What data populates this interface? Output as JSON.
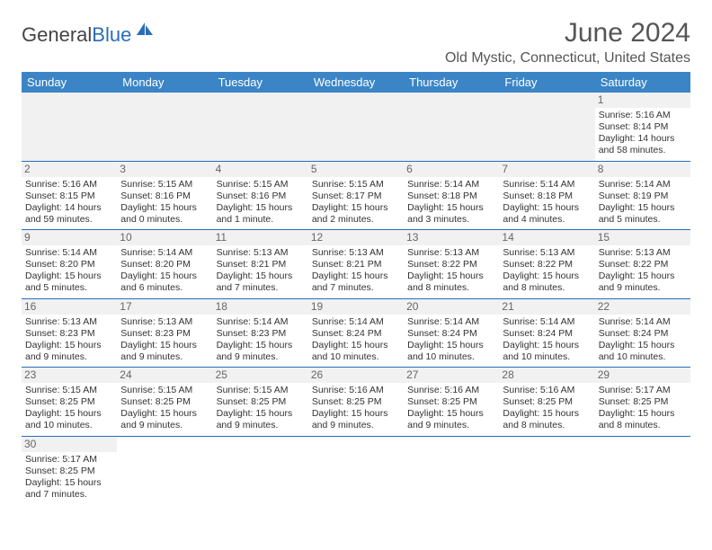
{
  "brand": {
    "part1": "General",
    "part2": "Blue"
  },
  "title": "June 2024",
  "location": "Old Mystic, Connecticut, United States",
  "colors": {
    "header_bg": "#3b85c6",
    "header_text": "#ffffff",
    "rule": "#2a6db8",
    "daybar_bg": "#f1f1f1",
    "text": "#333333",
    "title_text": "#555555"
  },
  "weekdays": [
    "Sunday",
    "Monday",
    "Tuesday",
    "Wednesday",
    "Thursday",
    "Friday",
    "Saturday"
  ],
  "weeks": [
    [
      null,
      null,
      null,
      null,
      null,
      null,
      {
        "n": "1",
        "sunrise": "Sunrise: 5:16 AM",
        "sunset": "Sunset: 8:14 PM",
        "daylight": "Daylight: 14 hours and 58 minutes."
      }
    ],
    [
      {
        "n": "2",
        "sunrise": "Sunrise: 5:16 AM",
        "sunset": "Sunset: 8:15 PM",
        "daylight": "Daylight: 14 hours and 59 minutes."
      },
      {
        "n": "3",
        "sunrise": "Sunrise: 5:15 AM",
        "sunset": "Sunset: 8:16 PM",
        "daylight": "Daylight: 15 hours and 0 minutes."
      },
      {
        "n": "4",
        "sunrise": "Sunrise: 5:15 AM",
        "sunset": "Sunset: 8:16 PM",
        "daylight": "Daylight: 15 hours and 1 minute."
      },
      {
        "n": "5",
        "sunrise": "Sunrise: 5:15 AM",
        "sunset": "Sunset: 8:17 PM",
        "daylight": "Daylight: 15 hours and 2 minutes."
      },
      {
        "n": "6",
        "sunrise": "Sunrise: 5:14 AM",
        "sunset": "Sunset: 8:18 PM",
        "daylight": "Daylight: 15 hours and 3 minutes."
      },
      {
        "n": "7",
        "sunrise": "Sunrise: 5:14 AM",
        "sunset": "Sunset: 8:18 PM",
        "daylight": "Daylight: 15 hours and 4 minutes."
      },
      {
        "n": "8",
        "sunrise": "Sunrise: 5:14 AM",
        "sunset": "Sunset: 8:19 PM",
        "daylight": "Daylight: 15 hours and 5 minutes."
      }
    ],
    [
      {
        "n": "9",
        "sunrise": "Sunrise: 5:14 AM",
        "sunset": "Sunset: 8:20 PM",
        "daylight": "Daylight: 15 hours and 5 minutes."
      },
      {
        "n": "10",
        "sunrise": "Sunrise: 5:14 AM",
        "sunset": "Sunset: 8:20 PM",
        "daylight": "Daylight: 15 hours and 6 minutes."
      },
      {
        "n": "11",
        "sunrise": "Sunrise: 5:13 AM",
        "sunset": "Sunset: 8:21 PM",
        "daylight": "Daylight: 15 hours and 7 minutes."
      },
      {
        "n": "12",
        "sunrise": "Sunrise: 5:13 AM",
        "sunset": "Sunset: 8:21 PM",
        "daylight": "Daylight: 15 hours and 7 minutes."
      },
      {
        "n": "13",
        "sunrise": "Sunrise: 5:13 AM",
        "sunset": "Sunset: 8:22 PM",
        "daylight": "Daylight: 15 hours and 8 minutes."
      },
      {
        "n": "14",
        "sunrise": "Sunrise: 5:13 AM",
        "sunset": "Sunset: 8:22 PM",
        "daylight": "Daylight: 15 hours and 8 minutes."
      },
      {
        "n": "15",
        "sunrise": "Sunrise: 5:13 AM",
        "sunset": "Sunset: 8:22 PM",
        "daylight": "Daylight: 15 hours and 9 minutes."
      }
    ],
    [
      {
        "n": "16",
        "sunrise": "Sunrise: 5:13 AM",
        "sunset": "Sunset: 8:23 PM",
        "daylight": "Daylight: 15 hours and 9 minutes."
      },
      {
        "n": "17",
        "sunrise": "Sunrise: 5:13 AM",
        "sunset": "Sunset: 8:23 PM",
        "daylight": "Daylight: 15 hours and 9 minutes."
      },
      {
        "n": "18",
        "sunrise": "Sunrise: 5:14 AM",
        "sunset": "Sunset: 8:23 PM",
        "daylight": "Daylight: 15 hours and 9 minutes."
      },
      {
        "n": "19",
        "sunrise": "Sunrise: 5:14 AM",
        "sunset": "Sunset: 8:24 PM",
        "daylight": "Daylight: 15 hours and 10 minutes."
      },
      {
        "n": "20",
        "sunrise": "Sunrise: 5:14 AM",
        "sunset": "Sunset: 8:24 PM",
        "daylight": "Daylight: 15 hours and 10 minutes."
      },
      {
        "n": "21",
        "sunrise": "Sunrise: 5:14 AM",
        "sunset": "Sunset: 8:24 PM",
        "daylight": "Daylight: 15 hours and 10 minutes."
      },
      {
        "n": "22",
        "sunrise": "Sunrise: 5:14 AM",
        "sunset": "Sunset: 8:24 PM",
        "daylight": "Daylight: 15 hours and 10 minutes."
      }
    ],
    [
      {
        "n": "23",
        "sunrise": "Sunrise: 5:15 AM",
        "sunset": "Sunset: 8:25 PM",
        "daylight": "Daylight: 15 hours and 10 minutes."
      },
      {
        "n": "24",
        "sunrise": "Sunrise: 5:15 AM",
        "sunset": "Sunset: 8:25 PM",
        "daylight": "Daylight: 15 hours and 9 minutes."
      },
      {
        "n": "25",
        "sunrise": "Sunrise: 5:15 AM",
        "sunset": "Sunset: 8:25 PM",
        "daylight": "Daylight: 15 hours and 9 minutes."
      },
      {
        "n": "26",
        "sunrise": "Sunrise: 5:16 AM",
        "sunset": "Sunset: 8:25 PM",
        "daylight": "Daylight: 15 hours and 9 minutes."
      },
      {
        "n": "27",
        "sunrise": "Sunrise: 5:16 AM",
        "sunset": "Sunset: 8:25 PM",
        "daylight": "Daylight: 15 hours and 9 minutes."
      },
      {
        "n": "28",
        "sunrise": "Sunrise: 5:16 AM",
        "sunset": "Sunset: 8:25 PM",
        "daylight": "Daylight: 15 hours and 8 minutes."
      },
      {
        "n": "29",
        "sunrise": "Sunrise: 5:17 AM",
        "sunset": "Sunset: 8:25 PM",
        "daylight": "Daylight: 15 hours and 8 minutes."
      }
    ],
    [
      {
        "n": "30",
        "sunrise": "Sunrise: 5:17 AM",
        "sunset": "Sunset: 8:25 PM",
        "daylight": "Daylight: 15 hours and 7 minutes."
      },
      null,
      null,
      null,
      null,
      null,
      null
    ]
  ]
}
